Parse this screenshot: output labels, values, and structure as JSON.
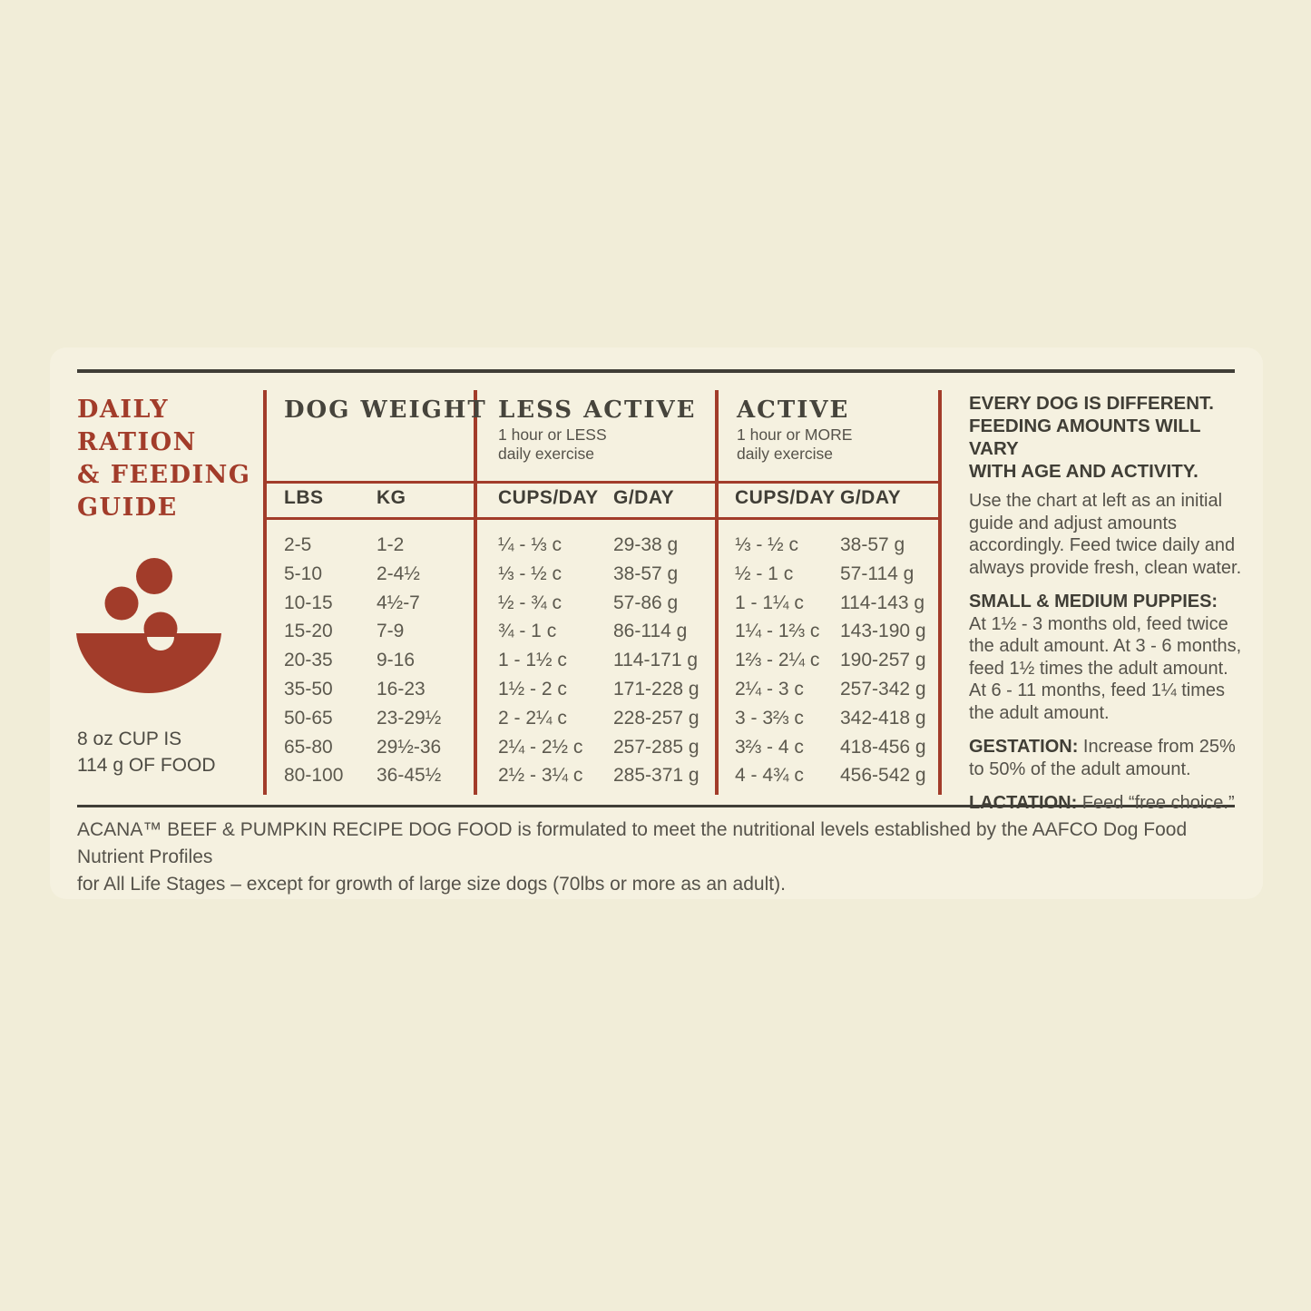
{
  "colors": {
    "background": "#f1edd8",
    "panel": "#f5f1e0",
    "accent_red": "#a23c2a",
    "dark_rule": "#403e37",
    "heading_text": "#46443c",
    "body_text": "#55524a"
  },
  "left": {
    "title": "DAILY RATION\n& FEEDING\nGUIDE",
    "bowl_icon": "bowl-with-kibble-icon",
    "cup_note": "8 oz CUP IS\n114 g OF FOOD"
  },
  "table": {
    "group_headers": {
      "dog_weight": "DOG WEIGHT",
      "less_active": "LESS ACTIVE",
      "less_active_sub": "1 hour or LESS\ndaily exercise",
      "active": "ACTIVE",
      "active_sub": "1 hour or MORE\ndaily exercise"
    },
    "col_headers": {
      "lbs": "LBS",
      "kg": "KG",
      "less_cups": "CUPS/DAY",
      "less_g": "G/DAY",
      "active_cups": "CUPS/DAY",
      "active_g": "G/DAY"
    },
    "columns": {
      "lbs": [
        "2-5",
        "5-10",
        "10-15",
        "15-20",
        "20-35",
        "35-50",
        "50-65",
        "65-80",
        "80-100"
      ],
      "kg": [
        "1-2",
        "2-4½",
        "4½-7",
        "7-9",
        "9-16",
        "16-23",
        "23-29½",
        "29½-36",
        "36-45½"
      ],
      "less_cups": [
        "¼ - ⅓ c",
        "⅓ - ½ c",
        "½ - ¾ c",
        "¾ - 1 c",
        "1 - 1½ c",
        "1½ - 2 c",
        "2 - 2¼ c",
        "2¼ - 2½ c",
        "2½ - 3¼ c"
      ],
      "less_g": [
        "29-38 g",
        "38-57 g",
        "57-86 g",
        "86-114 g",
        "114-171 g",
        "171-228 g",
        "228-257 g",
        "257-285 g",
        "285-371 g"
      ],
      "active_cups": [
        "⅓ - ½ c",
        "½ - 1 c",
        "1 - 1¼ c",
        "1¼ - 1⅔ c",
        "1⅔ - 2¼ c",
        "2¼ - 3 c",
        "3 - 3⅔ c",
        "3⅔ - 4 c",
        "4 - 4¾ c"
      ],
      "active_g": [
        "38-57 g",
        "57-114 g",
        "114-143 g",
        "143-190 g",
        "190-257 g",
        "257-342 g",
        "342-418 g",
        "418-456 g",
        "456-542 g"
      ]
    }
  },
  "right": {
    "heading": "EVERY DOG IS DIFFERENT.\nFEEDING AMOUNTS WILL VARY\nWITH AGE AND ACTIVITY.",
    "intro": "Use the chart at left as an initial guide and adjust amounts accordingly. Feed twice daily and always provide fresh, clean water.",
    "puppies_label": "SMALL & MEDIUM PUPPIES:",
    "puppies_text": "At 1½ - 3 months old, feed twice the adult amount. At 3 - 6 months, feed 1½ times the adult amount. At 6 - 11 months, feed 1¼ times the adult amount.",
    "gestation_label": "GESTATION:",
    "gestation_text": " Increase from 25% to 50% of the adult amount.",
    "lactation_label": "LACTATION:",
    "lactation_text": " Feed “free choice.”"
  },
  "footer": "ACANA™ BEEF & PUMPKIN RECIPE DOG FOOD is formulated to meet the nutritional levels established by the AAFCO Dog Food Nutrient Profiles\nfor All Life Stages – except for growth of large size dogs (70lbs or more as an adult)."
}
